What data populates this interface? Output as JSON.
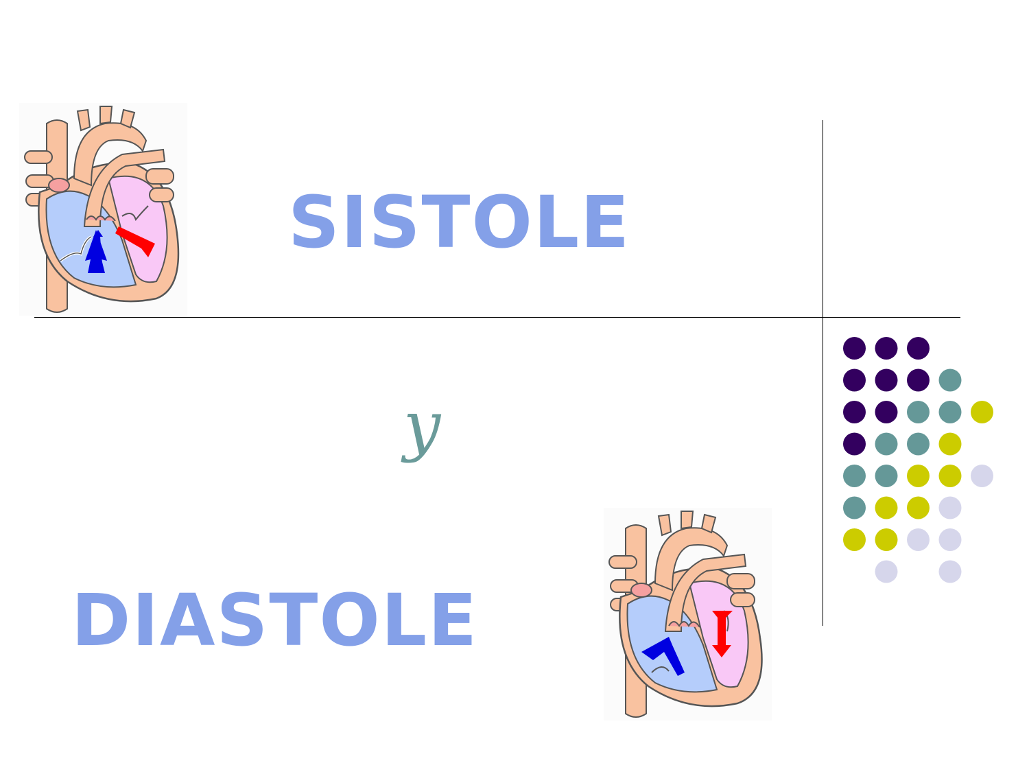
{
  "slide": {
    "title_top": "SISTOLE",
    "conjunction": "y",
    "title_bottom": "DIASTOLE"
  },
  "colors": {
    "title": "#84a0e8",
    "conjunction": "#6a9b9a",
    "dot_purple": "#33005f",
    "dot_teal": "#659898",
    "dot_olive": "#cccc00",
    "dot_lavender": "#d6d6eb"
  },
  "icons": {
    "heart_top": "heart-systole-diagram-icon",
    "heart_bottom": "heart-diastole-diagram-icon"
  },
  "dot_grid": [
    [
      "purple",
      "purple",
      "purple",
      null,
      null
    ],
    [
      "purple",
      "purple",
      "purple",
      "teal",
      null
    ],
    [
      "purple",
      "purple",
      "teal",
      "teal",
      "olive"
    ],
    [
      "purple",
      "teal",
      "teal",
      "olive",
      null
    ],
    [
      "teal",
      "teal",
      "olive",
      "olive",
      "lavender"
    ],
    [
      "teal",
      "olive",
      "olive",
      "lavender",
      null
    ],
    [
      "olive",
      "olive",
      "lavender",
      "lavender",
      null
    ],
    [
      null,
      "lavender",
      null,
      "lavender",
      null
    ]
  ]
}
